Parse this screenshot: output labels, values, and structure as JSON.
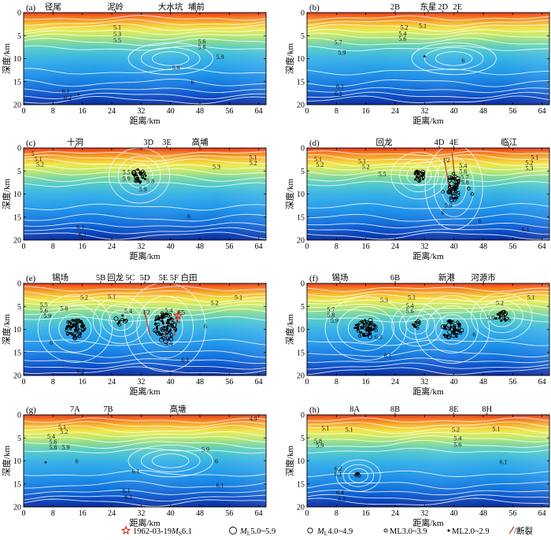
{
  "figure": {
    "legend": {
      "items": [
        {
          "symbol": "star",
          "label_prefix": "1962-03-19",
          "label_sub": "M",
          "label_sub2": "S",
          "label_suffix": "6.1"
        },
        {
          "symbol": "circle-large",
          "label_prefix": "",
          "label_sub": "M",
          "label_sub2": "L",
          "label_suffix": "5.0~5.9"
        },
        {
          "symbol": "circle-medium",
          "label_prefix": "",
          "label_sub": "M",
          "label_sub2": "L",
          "label_suffix": "4.0~4.9"
        },
        {
          "symbol": "circle-small",
          "label_prefix": "ML3.0~3.9",
          "label_sub": "",
          "label_sub2": "",
          "label_suffix": ""
        },
        {
          "symbol": "dot",
          "label_prefix": "ML2.0~2.9",
          "label_sub": "",
          "label_sub2": "",
          "label_suffix": ""
        },
        {
          "symbol": "line",
          "label_prefix": "/断裂",
          "label_sub": "",
          "label_sub2": "",
          "label_suffix": ""
        }
      ]
    },
    "colors": {
      "star": "#e02020",
      "fault": "#c0392b",
      "contour": "#ffffff"
    }
  },
  "chart_data": [
    {
      "type": "heatmap",
      "panel": "(a)",
      "xlabel": "距离/km",
      "ylabel": "深度/km",
      "xlim": [
        0,
        66
      ],
      "ylim": [
        20,
        0
      ],
      "xticks": [
        0,
        8,
        16,
        24,
        32,
        40,
        48,
        56,
        64
      ],
      "yticks": [
        0,
        5,
        10,
        15,
        20
      ],
      "profile_labels": [
        {
          "x": 8,
          "text": "径尾"
        },
        {
          "x": 25,
          "text": "泥岭"
        },
        {
          "x": 40,
          "text": "大水坑"
        },
        {
          "x": 47,
          "text": "埔前"
        }
      ],
      "contour_labels": [
        {
          "x": 25.5,
          "y": 3.2,
          "text": "5.1"
        },
        {
          "x": 25.5,
          "y": 4.6,
          "text": "5.3"
        },
        {
          "x": 25.5,
          "y": 6.0,
          "text": "5.5"
        },
        {
          "x": 48.5,
          "y": 6.2,
          "text": "5.6"
        },
        {
          "x": 48.5,
          "y": 7.4,
          "text": "5.8"
        },
        {
          "x": 53.5,
          "y": 9.6,
          "text": "5.9"
        },
        {
          "x": 41.5,
          "y": 12.0,
          "text": "5.9"
        },
        {
          "x": 46.0,
          "y": 15.0,
          "text": "6"
        },
        {
          "x": 11.5,
          "y": 17.0,
          "text": "6.1"
        },
        {
          "x": 12.0,
          "y": 18.5,
          "text": "6.2"
        }
      ],
      "events": [
        {
          "type": "dot",
          "x": 15,
          "y": 17.8
        }
      ]
    },
    {
      "type": "heatmap",
      "panel": "(b)",
      "xlabel": "距离/km",
      "ylabel": "深度/km",
      "xlim": [
        0,
        66
      ],
      "ylim": [
        20,
        0
      ],
      "xticks": [
        0,
        8,
        16,
        24,
        32,
        40,
        48,
        56,
        64
      ],
      "yticks": [
        0,
        5,
        10,
        15,
        20
      ],
      "profile_labels": [
        {
          "x": 24,
          "text": "2B"
        },
        {
          "x": 33,
          "text": "东星"
        },
        {
          "x": 37,
          "text": "2D"
        },
        {
          "x": 41,
          "text": "2E"
        }
      ],
      "contour_labels": [
        {
          "x": 26.5,
          "y": 3.2,
          "text": "5.2"
        },
        {
          "x": 26.0,
          "y": 4.5,
          "text": "5.4"
        },
        {
          "x": 26.0,
          "y": 5.6,
          "text": "5.6"
        },
        {
          "x": 31.5,
          "y": 2.8,
          "text": "5.1"
        },
        {
          "x": 8.5,
          "y": 6.4,
          "text": "5.7"
        },
        {
          "x": 9.5,
          "y": 8.6,
          "text": "5.9"
        },
        {
          "x": 42.5,
          "y": 10.3,
          "text": "6"
        },
        {
          "x": 9.0,
          "y": 16.0,
          "text": "6.1"
        },
        {
          "x": 8.5,
          "y": 17.6,
          "text": "6.2"
        }
      ],
      "events": [
        {
          "type": "dot",
          "x": 32,
          "y": 9.5
        }
      ]
    },
    {
      "type": "heatmap",
      "panel": "(c)",
      "xlabel": "距离/km",
      "ylabel": "深度/km",
      "xlim": [
        0,
        66
      ],
      "ylim": [
        20,
        0
      ],
      "xticks": [
        0,
        8,
        16,
        24,
        32,
        40,
        48,
        56,
        64
      ],
      "yticks": [
        0,
        5,
        10,
        15,
        20
      ],
      "profile_labels": [
        {
          "x": 14,
          "text": "十洞"
        },
        {
          "x": 34,
          "text": "3D"
        },
        {
          "x": 39,
          "text": "3E"
        },
        {
          "x": 48,
          "text": "高埔"
        }
      ],
      "contour_labels": [
        {
          "x": 2.5,
          "y": 1.2,
          "text": "5"
        },
        {
          "x": 4.0,
          "y": 2.4,
          "text": "5.1"
        },
        {
          "x": 4.5,
          "y": 3.5,
          "text": "5.2"
        },
        {
          "x": 28.0,
          "y": 5.2,
          "text": "5.5"
        },
        {
          "x": 28.0,
          "y": 6.6,
          "text": "5.9"
        },
        {
          "x": 34.5,
          "y": 7.2,
          "text": "5.8"
        },
        {
          "x": 32.5,
          "y": 9.0,
          "text": "5.9"
        },
        {
          "x": 52.5,
          "y": 4.0,
          "text": "5.3"
        },
        {
          "x": 62.5,
          "y": 2.0,
          "text": "5.1"
        },
        {
          "x": 62.5,
          "y": 3.2,
          "text": "5.2"
        },
        {
          "x": 45.0,
          "y": 14.8,
          "text": "6"
        },
        {
          "x": 15.5,
          "y": 17.2,
          "text": "6.1"
        },
        {
          "x": 16.0,
          "y": 18.8,
          "text": "6.2"
        }
      ],
      "events": [
        {
          "type": "cluster",
          "x": 31.5,
          "y": 6.0,
          "rx": 1.8,
          "ry": 1.6,
          "n": 30
        }
      ]
    },
    {
      "type": "heatmap",
      "panel": "(d)",
      "xlabel": "距离/km",
      "ylabel": "深度/km",
      "xlim": [
        0,
        66
      ],
      "ylim": [
        20,
        0
      ],
      "xticks": [
        0,
        8,
        16,
        24,
        32,
        40,
        48,
        56,
        64
      ],
      "yticks": [
        0,
        5,
        10,
        15,
        20
      ],
      "profile_labels": [
        {
          "x": 21,
          "text": "回龙"
        },
        {
          "x": 36,
          "text": "4D"
        },
        {
          "x": 40,
          "text": "4E"
        },
        {
          "x": 55,
          "text": "临江"
        }
      ],
      "fault_labels": [
        {
          "x": 38.0,
          "y": 2.6,
          "text": "F2"
        }
      ],
      "contour_labels": [
        {
          "x": 3.0,
          "y": 2.4,
          "text": "5.1"
        },
        {
          "x": 3.5,
          "y": 3.6,
          "text": "5.2"
        },
        {
          "x": 15.0,
          "y": 2.8,
          "text": "5.1"
        },
        {
          "x": 16.0,
          "y": 4.0,
          "text": "5.2"
        },
        {
          "x": 20.5,
          "y": 5.6,
          "text": "5.5"
        },
        {
          "x": 42.5,
          "y": 3.8,
          "text": "5.4"
        },
        {
          "x": 42.5,
          "y": 5.0,
          "text": "5.6"
        },
        {
          "x": 43.0,
          "y": 6.2,
          "text": "5.7"
        },
        {
          "x": 43.0,
          "y": 7.4,
          "text": "5.8"
        },
        {
          "x": 38.5,
          "y": 12.5,
          "text": "5.9"
        },
        {
          "x": 37.0,
          "y": 14.0,
          "text": "6"
        },
        {
          "x": 60.5,
          "y": 3.2,
          "text": "5.2"
        },
        {
          "x": 60.5,
          "y": 4.4,
          "text": "5.3"
        },
        {
          "x": 62.0,
          "y": 2.0,
          "text": "5.1"
        },
        {
          "x": 47.0,
          "y": 15.8,
          "text": "6"
        },
        {
          "x": 59.5,
          "y": 17.6,
          "text": "6.1"
        }
      ],
      "faults": [
        {
          "x1": 37.5,
          "y1": 3.0,
          "x2": 38.8,
          "y2": 9.0
        },
        {
          "x1": 39.5,
          "y1": 1.0,
          "x2": 40.3,
          "y2": 7.0
        }
      ],
      "events": [
        {
          "type": "cluster",
          "x": 30.5,
          "y": 6.0,
          "rx": 1.5,
          "ry": 1.2,
          "n": 24
        },
        {
          "type": "cluster",
          "x": 40.0,
          "y": 8.5,
          "rx": 1.6,
          "ry": 3.0,
          "n": 55
        },
        {
          "type": "circle",
          "x": 44.0,
          "y": 8.8,
          "r": 0.3
        },
        {
          "type": "circle",
          "x": 45.0,
          "y": 10.0,
          "r": 0.3
        },
        {
          "type": "circle",
          "x": 37.0,
          "y": 9.5,
          "r": 0.3
        }
      ]
    },
    {
      "type": "heatmap",
      "panel": "(e)",
      "xlabel": "距离/km",
      "ylabel": "深度/km",
      "xlim": [
        0,
        66
      ],
      "ylim": [
        20,
        0
      ],
      "xticks": [
        0,
        8,
        16,
        24,
        32,
        40,
        48,
        56,
        64
      ],
      "yticks": [
        0,
        5,
        10,
        15,
        20
      ],
      "profile_labels": [
        {
          "x": 10,
          "text": "锡场"
        },
        {
          "x": 21,
          "text": "5B"
        },
        {
          "x": 25,
          "text": "回龙"
        },
        {
          "x": 29,
          "text": "5C"
        },
        {
          "x": 33,
          "text": "5D"
        },
        {
          "x": 38,
          "text": "5E"
        },
        {
          "x": 41,
          "text": "5F"
        },
        {
          "x": 45,
          "text": "白田"
        }
      ],
      "fault_labels": [
        {
          "x": 33.5,
          "y": 6.2,
          "text": "F2"
        },
        {
          "x": 43.0,
          "y": 6.2,
          "text": "F5"
        }
      ],
      "contour_labels": [
        {
          "x": 5.5,
          "y": 4.6,
          "text": "5.5"
        },
        {
          "x": 5.5,
          "y": 5.8,
          "text": "5.6"
        },
        {
          "x": 11.0,
          "y": 5.4,
          "text": "5.8"
        },
        {
          "x": 6.5,
          "y": 7.0,
          "text": "5.9"
        },
        {
          "x": 16.5,
          "y": 3.0,
          "text": "5.2"
        },
        {
          "x": 24.0,
          "y": 2.8,
          "text": "5.1"
        },
        {
          "x": 28.5,
          "y": 6.0,
          "text": "5.4"
        },
        {
          "x": 39.5,
          "y": 5.8,
          "text": "5.4"
        },
        {
          "x": 41.5,
          "y": 8.2,
          "text": "5.6"
        },
        {
          "x": 39.5,
          "y": 13.2,
          "text": "5.9"
        },
        {
          "x": 52.0,
          "y": 4.2,
          "text": "5.2"
        },
        {
          "x": 58.5,
          "y": 3.0,
          "text": "5.1"
        },
        {
          "x": 49.5,
          "y": 9.2,
          "text": "6"
        },
        {
          "x": 7.5,
          "y": 12.8,
          "text": "6"
        },
        {
          "x": 44.0,
          "y": 16.6,
          "text": "6.1"
        },
        {
          "x": 15.5,
          "y": 19.0,
          "text": "6.2"
        }
      ],
      "faults": [
        {
          "x1": 33.0,
          "y1": 6.5,
          "x2": 34.5,
          "y2": 11.5
        },
        {
          "x1": 42.0,
          "y1": 6.5,
          "x2": 41.0,
          "y2": 11.5
        },
        {
          "x1": 37.5,
          "y1": 7.0,
          "x2": 38.8,
          "y2": 12.0
        }
      ],
      "events": [
        {
          "type": "cluster",
          "x": 14.0,
          "y": 9.8,
          "rx": 2.6,
          "ry": 2.2,
          "n": 60
        },
        {
          "type": "cluster",
          "x": 38.5,
          "y": 9.5,
          "rx": 3.0,
          "ry": 3.2,
          "n": 80
        },
        {
          "type": "cluster",
          "x": 26.5,
          "y": 8.0,
          "rx": 1.5,
          "ry": 1.2,
          "n": 10
        },
        {
          "type": "star",
          "x": 42.0,
          "y": 7.0
        }
      ]
    },
    {
      "type": "heatmap",
      "panel": "(f)",
      "xlabel": "距离/km",
      "ylabel": "深度/km",
      "xlim": [
        0,
        66
      ],
      "ylim": [
        20,
        0
      ],
      "xticks": [
        0,
        8,
        16,
        24,
        32,
        40,
        48,
        56,
        64
      ],
      "yticks": [
        0,
        5,
        10,
        15,
        20
      ],
      "profile_labels": [
        {
          "x": 9,
          "text": "锡场"
        },
        {
          "x": 24,
          "text": "6B"
        },
        {
          "x": 38,
          "text": "新港"
        },
        {
          "x": 48,
          "text": "河源市"
        }
      ],
      "contour_labels": [
        {
          "x": 6.5,
          "y": 5.6,
          "text": "5.7"
        },
        {
          "x": 6.5,
          "y": 6.8,
          "text": "5.8"
        },
        {
          "x": 7.5,
          "y": 8.0,
          "text": "5.9"
        },
        {
          "x": 21.0,
          "y": 3.6,
          "text": "5.3"
        },
        {
          "x": 28.5,
          "y": 3.0,
          "text": "5.1"
        },
        {
          "x": 28.0,
          "y": 4.8,
          "text": "5.4"
        },
        {
          "x": 28.0,
          "y": 6.0,
          "text": "5.6"
        },
        {
          "x": 19.5,
          "y": 11.6,
          "text": "6.1"
        },
        {
          "x": 45.5,
          "y": 11.0,
          "text": "6"
        },
        {
          "x": 50.0,
          "y": 7.4,
          "text": "5.9"
        },
        {
          "x": 55.0,
          "y": 7.8,
          "text": "6"
        },
        {
          "x": 52.5,
          "y": 4.2,
          "text": "5.2"
        },
        {
          "x": 61.0,
          "y": 3.0,
          "text": "5.1"
        },
        {
          "x": 22.0,
          "y": 15.6,
          "text": "6.1"
        }
      ],
      "events": [
        {
          "type": "cluster",
          "x": 16.0,
          "y": 9.8,
          "rx": 3.0,
          "ry": 2.0,
          "n": 60
        },
        {
          "type": "cluster",
          "x": 39.5,
          "y": 10.0,
          "rx": 2.6,
          "ry": 2.2,
          "n": 50
        },
        {
          "type": "cluster",
          "x": 30.0,
          "y": 9.0,
          "rx": 1.2,
          "ry": 1.0,
          "n": 10
        },
        {
          "type": "cluster",
          "x": 53.0,
          "y": 7.2,
          "rx": 1.8,
          "ry": 1.2,
          "n": 22
        }
      ]
    },
    {
      "type": "heatmap",
      "panel": "(g)",
      "xlabel": "距离/km",
      "ylabel": "深度/km",
      "xlim": [
        0,
        66
      ],
      "ylim": [
        20,
        0
      ],
      "xticks": [
        0,
        8,
        16,
        24,
        32,
        40,
        48,
        56,
        64
      ],
      "yticks": [
        0,
        5,
        10,
        15,
        20
      ],
      "profile_labels": [
        {
          "x": 14,
          "text": "7A"
        },
        {
          "x": 23,
          "text": "7B"
        },
        {
          "x": 42,
          "text": "高塘"
        }
      ],
      "contour_labels": [
        {
          "x": 10.5,
          "y": 2.6,
          "text": "5.1"
        },
        {
          "x": 11.0,
          "y": 3.6,
          "text": "5.2"
        },
        {
          "x": 7.5,
          "y": 4.6,
          "text": "5.4"
        },
        {
          "x": 8.0,
          "y": 5.8,
          "text": "5.6"
        },
        {
          "x": 8.0,
          "y": 7.0,
          "text": "5.8"
        },
        {
          "x": 11.5,
          "y": 7.0,
          "text": "5.9"
        },
        {
          "x": 14.5,
          "y": 10.0,
          "text": "6"
        },
        {
          "x": 30.5,
          "y": 12.2,
          "text": "6.1"
        },
        {
          "x": 49.5,
          "y": 7.4,
          "text": "5.9"
        },
        {
          "x": 52.5,
          "y": 10.0,
          "text": "6"
        },
        {
          "x": 53.5,
          "y": 15.2,
          "text": "6.1"
        },
        {
          "x": 28.0,
          "y": 16.4,
          "text": "6.1"
        },
        {
          "x": 28.5,
          "y": 17.8,
          "text": "6.2"
        },
        {
          "x": 62.5,
          "y": 0.8,
          "text": "4.9"
        }
      ],
      "events": [
        {
          "type": "dot",
          "x": 6.0,
          "y": 10.3
        }
      ]
    },
    {
      "type": "heatmap",
      "panel": "(h)",
      "xlabel": "距离/km",
      "ylabel": "深度/km",
      "xlim": [
        0,
        66
      ],
      "ylim": [
        20,
        0
      ],
      "xticks": [
        0,
        8,
        16,
        24,
        32,
        40,
        48,
        56,
        64
      ],
      "yticks": [
        0,
        5,
        10,
        15,
        20
      ],
      "profile_labels": [
        {
          "x": 13,
          "text": "8A"
        },
        {
          "x": 24,
          "text": "8B"
        },
        {
          "x": 40,
          "text": "8E"
        },
        {
          "x": 49,
          "text": "8H"
        }
      ],
      "contour_labels": [
        {
          "x": 5.0,
          "y": 2.8,
          "text": "5.1"
        },
        {
          "x": 3.0,
          "y": 5.6,
          "text": "5.8"
        },
        {
          "x": 3.5,
          "y": 6.6,
          "text": "5.9"
        },
        {
          "x": 11.5,
          "y": 3.2,
          "text": "5.1"
        },
        {
          "x": 40.5,
          "y": 3.2,
          "text": "5.2"
        },
        {
          "x": 41.0,
          "y": 5.0,
          "text": "5.4"
        },
        {
          "x": 41.0,
          "y": 6.4,
          "text": "5.6"
        },
        {
          "x": 51.5,
          "y": 3.0,
          "text": "5.1"
        },
        {
          "x": 53.5,
          "y": 10.2,
          "text": "6.1"
        },
        {
          "x": 8.5,
          "y": 11.6,
          "text": "6.2"
        },
        {
          "x": 8.5,
          "y": 12.8,
          "text": "6.1"
        },
        {
          "x": 9.0,
          "y": 16.8,
          "text": "6.4"
        },
        {
          "x": 9.5,
          "y": 18.2,
          "text": "6.2"
        }
      ],
      "events": [
        {
          "type": "cluster",
          "x": 14.0,
          "y": 13.2,
          "rx": 0.8,
          "ry": 0.5,
          "n": 6
        }
      ]
    }
  ]
}
